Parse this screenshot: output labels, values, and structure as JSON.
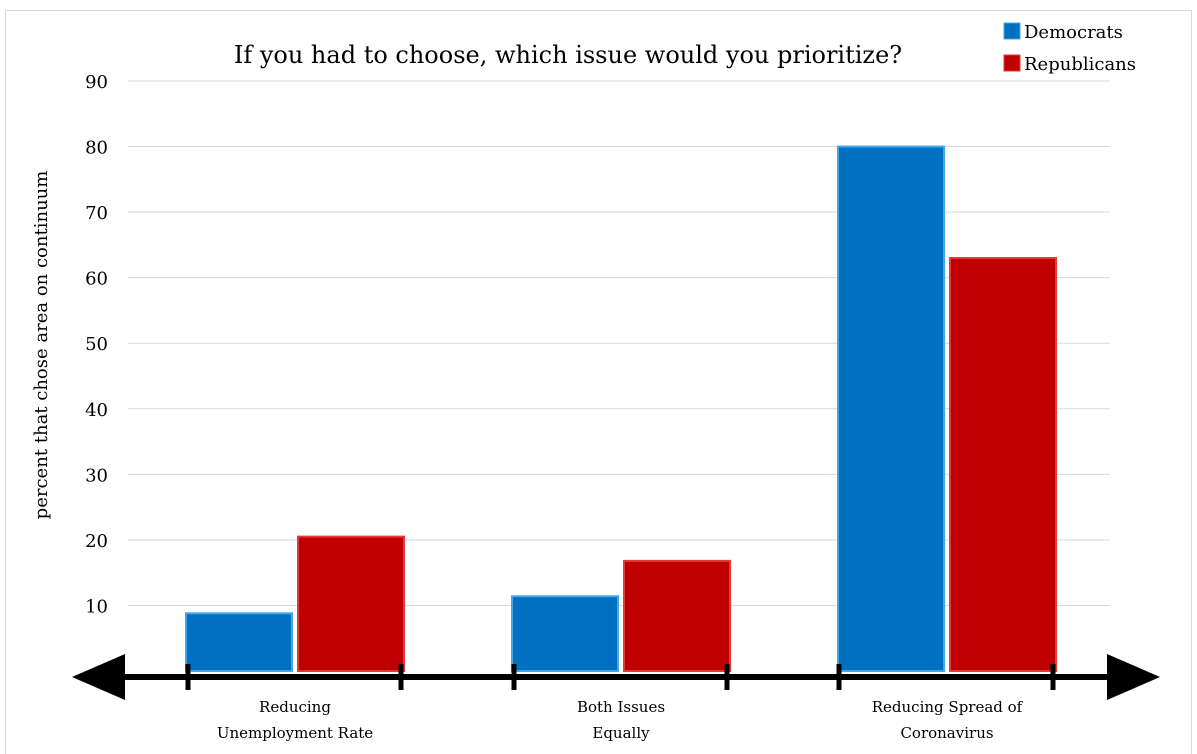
{
  "chart_data": {
    "type": "bar",
    "title": "If you had to choose, which issue would you prioritize?",
    "xlabel": "",
    "ylabel": "percent that chose area on continuum",
    "ylim": [
      0,
      90
    ],
    "yticks": [
      10,
      20,
      30,
      40,
      50,
      60,
      70,
      80,
      90
    ],
    "grid": true,
    "legend_position": "top-right",
    "categories": [
      [
        "Reducing",
        "Unemployment Rate"
      ],
      [
        "Both Issues",
        "Equally"
      ],
      [
        "Reducing Spread of",
        "Coronavirus"
      ]
    ],
    "series": [
      {
        "name": "Democrats",
        "color": "#0070c0",
        "values": [
          8.8,
          11.4,
          80
        ]
      },
      {
        "name": "Republicans",
        "color": "#c00000",
        "values": [
          20.5,
          16.8,
          63
        ]
      }
    ]
  }
}
